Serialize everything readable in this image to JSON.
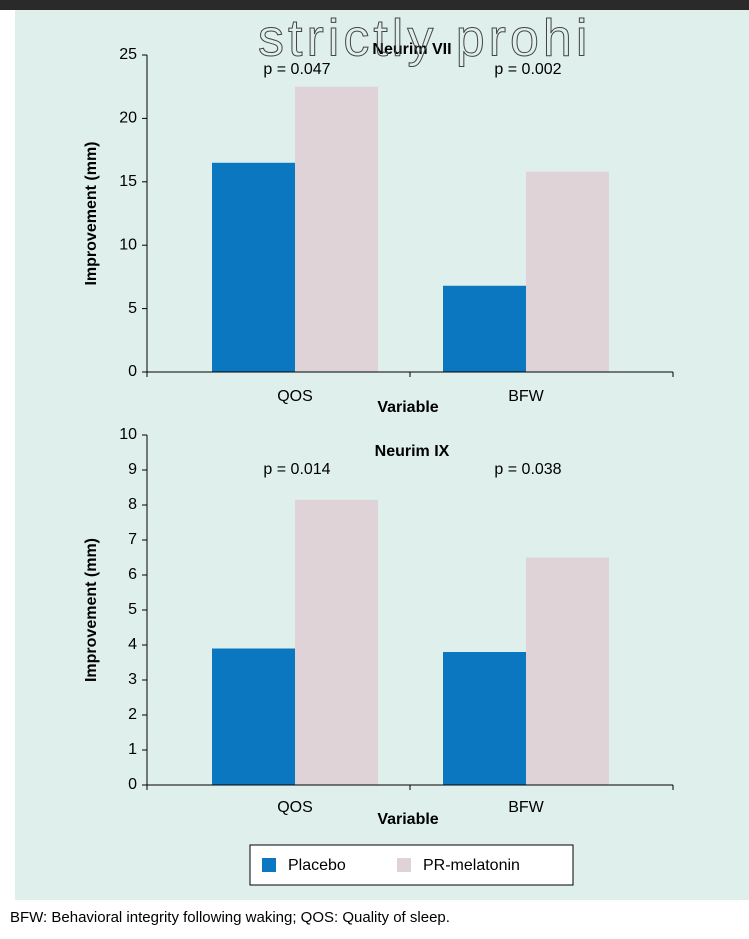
{
  "chart_data": [
    {
      "type": "bar",
      "title": "Neurim VII",
      "categories": [
        "QOS",
        "BFW"
      ],
      "series": [
        {
          "name": "Placebo",
          "color": "#0a77c0",
          "values": [
            16.5,
            6.8
          ]
        },
        {
          "name": "PR-melatonin",
          "color": "#e0d3d7",
          "values": [
            22.5,
            15.8
          ]
        }
      ],
      "annotations": [
        "p = 0.047",
        "p = 0.002"
      ],
      "xlabel": "Variable",
      "ylabel": "Improvement (mm)",
      "ylim": [
        0,
        25
      ],
      "yticks": [
        0,
        5,
        10,
        15,
        20,
        25
      ]
    },
    {
      "type": "bar",
      "title": "Neurim  IX",
      "categories": [
        "QOS",
        "BFW"
      ],
      "series": [
        {
          "name": "Placebo",
          "color": "#0a77c0",
          "values": [
            3.9,
            3.8
          ]
        },
        {
          "name": "PR-melatonin",
          "color": "#e0d3d7",
          "values": [
            8.15,
            6.5
          ]
        }
      ],
      "annotations": [
        "p = 0.014",
        "p = 0.038"
      ],
      "xlabel": "Variable",
      "ylabel": "Improvement (mm)",
      "ylim": [
        0,
        10
      ],
      "yticks": [
        0,
        1,
        2,
        3,
        4,
        5,
        6,
        7,
        8,
        9,
        10
      ]
    }
  ],
  "watermark": "strictly prohi",
  "caption": "BFW: Behavioral integrity following waking; QOS: Quality of sleep."
}
